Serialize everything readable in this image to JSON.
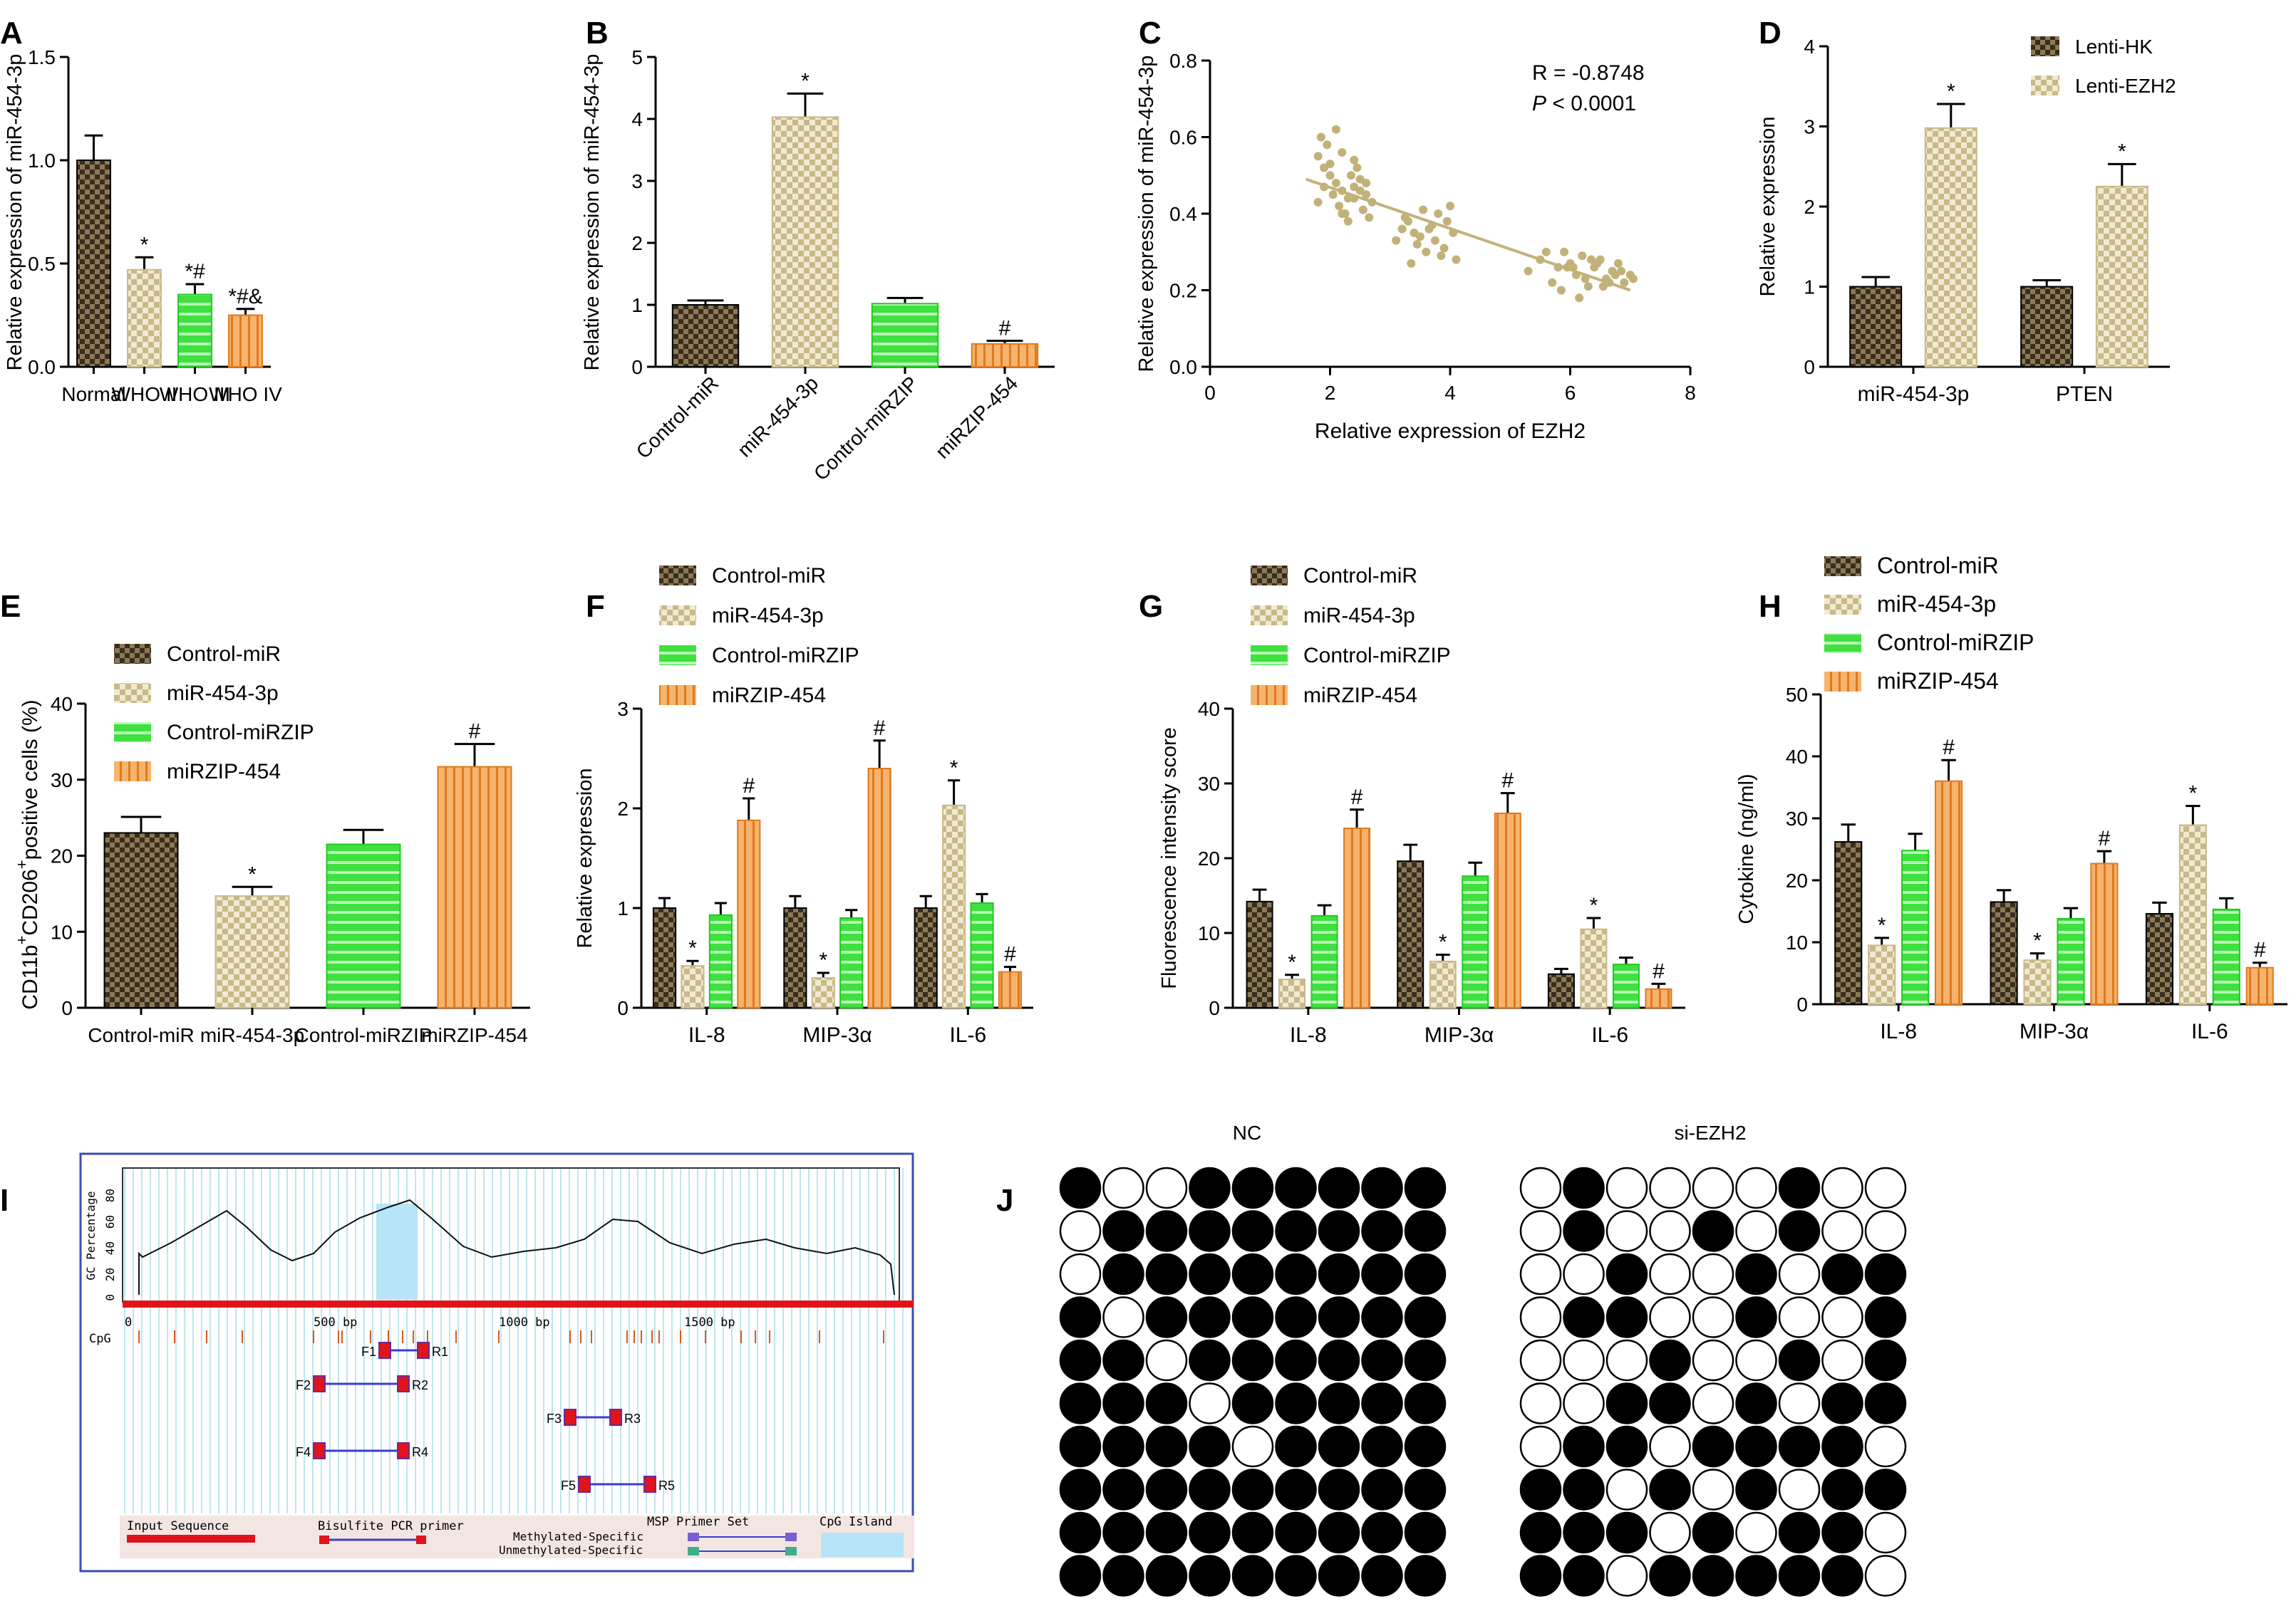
{
  "panels": {
    "A": {
      "letter": "A",
      "type": "bar",
      "ylabel": "Relative expression of miR-454-3p",
      "ylim": [
        0,
        1.5
      ],
      "yticks": [
        0.0,
        0.5,
        1.0,
        1.5
      ],
      "ytick_fmt": 1,
      "categories": [
        "Normal",
        "WHO II",
        "WHO III",
        "WHO IV"
      ],
      "values": [
        1.0,
        0.47,
        0.35,
        0.25
      ],
      "errors": [
        0.12,
        0.06,
        0.05,
        0.03
      ],
      "annotations": [
        "",
        "*",
        "*#",
        "*#&"
      ],
      "patterns": [
        "cm",
        "hm",
        "sm",
        "om"
      ]
    },
    "B": {
      "letter": "B",
      "type": "bar",
      "ylabel": "Relative expression of miR-454-3p",
      "ylim": [
        0,
        5
      ],
      "yticks": [
        0,
        1,
        2,
        3,
        4,
        5
      ],
      "ytick_fmt": 0,
      "rotated": true,
      "categories": [
        "Control-miR",
        "miR-454-3p",
        "Control-miRZIP",
        "miRZIP-454"
      ],
      "values": [
        1.0,
        4.03,
        1.02,
        0.37
      ],
      "errors": [
        0.07,
        0.38,
        0.09,
        0.05
      ],
      "annotations": [
        "",
        "*",
        "",
        "#"
      ],
      "patterns": [
        "cm",
        "hm",
        "sm",
        "om"
      ]
    },
    "C": {
      "letter": "C",
      "type": "scatter",
      "ylabel": "Relative expression of miR-454-3p",
      "xlabel": "Relative expression of EZH2",
      "xlim": [
        0,
        8
      ],
      "ylim": [
        0,
        0.8
      ],
      "xticks": [
        0,
        2,
        4,
        6,
        8
      ],
      "yticks": [
        0.0,
        0.2,
        0.4,
        0.6,
        0.8
      ],
      "stat_r": "R = -0.8748",
      "stat_p_italic": "P",
      "stat_p_rest": " < 0.0001",
      "fit": {
        "x0": 1.6,
        "y0": 0.49,
        "x1": 7.0,
        "y1": 0.2
      },
      "x": [
        1.8,
        1.9,
        2.0,
        2.1,
        2.2,
        2.3,
        2.4,
        2.5,
        2.6,
        2.7,
        1.85,
        1.95,
        2.05,
        2.15,
        2.25,
        2.35,
        2.45,
        2.55,
        2.65,
        1.9,
        2.0,
        2.2,
        2.3,
        2.4,
        2.1,
        2.5,
        2.6,
        1.8,
        2.2,
        2.4,
        3.1,
        3.2,
        3.3,
        3.4,
        3.5,
        3.6,
        3.7,
        3.8,
        3.9,
        4.0,
        4.1,
        3.25,
        3.45,
        3.65,
        3.85,
        4.05,
        3.55,
        3.75,
        3.35,
        3.95,
        5.3,
        5.5,
        5.7,
        5.8,
        5.9,
        6.0,
        6.1,
        6.2,
        6.3,
        6.4,
        6.5,
        6.6,
        6.7,
        6.8,
        6.9,
        7.0,
        5.6,
        5.85,
        6.05,
        6.25,
        6.45,
        6.65,
        6.85,
        6.15,
        6.35,
        6.55,
        6.75,
        5.95,
        7.05
      ],
      "y": [
        0.55,
        0.52,
        0.5,
        0.48,
        0.46,
        0.44,
        0.47,
        0.49,
        0.45,
        0.43,
        0.6,
        0.58,
        0.45,
        0.42,
        0.4,
        0.5,
        0.52,
        0.41,
        0.39,
        0.47,
        0.53,
        0.56,
        0.38,
        0.44,
        0.62,
        0.46,
        0.48,
        0.43,
        0.4,
        0.54,
        0.33,
        0.36,
        0.38,
        0.35,
        0.34,
        0.3,
        0.37,
        0.4,
        0.31,
        0.42,
        0.28,
        0.39,
        0.32,
        0.36,
        0.29,
        0.35,
        0.41,
        0.33,
        0.27,
        0.38,
        0.25,
        0.28,
        0.22,
        0.26,
        0.3,
        0.27,
        0.24,
        0.29,
        0.21,
        0.26,
        0.28,
        0.23,
        0.25,
        0.27,
        0.22,
        0.24,
        0.3,
        0.2,
        0.26,
        0.23,
        0.27,
        0.22,
        0.25,
        0.18,
        0.28,
        0.21,
        0.24,
        0.26,
        0.23
      ]
    },
    "D": {
      "letter": "D",
      "type": "bar",
      "ylabel": "Relative expression",
      "ylim": [
        0,
        4
      ],
      "yticks": [
        0,
        1,
        2,
        3,
        4
      ],
      "ytick_fmt": 0,
      "groups": [
        "miR-454-3p",
        "PTEN"
      ],
      "series": [
        {
          "name": "Lenti-HK",
          "pattern": "cm",
          "values": [
            1.0,
            1.0
          ],
          "errors": [
            0.12,
            0.08
          ],
          "annotations": [
            "",
            ""
          ]
        },
        {
          "name": "Lenti-EZH2",
          "pattern": "hm",
          "values": [
            2.98,
            2.25
          ],
          "errors": [
            0.3,
            0.28
          ],
          "annotations": [
            "*",
            "*"
          ]
        }
      ],
      "legend": [
        "Lenti-HK",
        "Lenti-EZH2"
      ]
    },
    "E": {
      "letter": "E",
      "type": "bar",
      "ylabel_main": "CD11b",
      "ylabel_sup1": "+",
      "ylabel_mid": "CD206",
      "ylabel_sup2": "+",
      "ylabel_tail": "positive cells (%)",
      "ylim": [
        0,
        40
      ],
      "yticks": [
        0,
        10,
        20,
        30,
        40
      ],
      "ytick_fmt": 0,
      "categories": [
        "Control-miR",
        "miR-454-3p",
        "Control-miRZIP",
        "miRZIP-454"
      ],
      "values": [
        23.0,
        14.7,
        21.5,
        31.7
      ],
      "errors": [
        2.1,
        1.2,
        1.9,
        3.0
      ],
      "annotations": [
        "",
        "*",
        "",
        "#"
      ],
      "patterns": [
        "cm",
        "hm",
        "sm",
        "om"
      ],
      "legend": [
        "Control-miR",
        "miR-454-3p",
        "Control-miRZIP",
        "miRZIP-454"
      ]
    },
    "F": {
      "letter": "F",
      "type": "bar",
      "ylabel": "Relative expression",
      "ylim": [
        0,
        3
      ],
      "yticks": [
        0,
        1,
        2,
        3
      ],
      "ytick_fmt": 0,
      "groups": [
        "IL-8",
        "MIP-3α",
        "IL-6"
      ],
      "series": [
        {
          "name": "Control-miR",
          "pattern": "cm",
          "values": [
            1.0,
            1.0,
            1.0
          ],
          "errors": [
            0.1,
            0.12,
            0.12
          ],
          "annotations": [
            "",
            "",
            ""
          ]
        },
        {
          "name": "miR-454-3p",
          "pattern": "hm",
          "values": [
            0.42,
            0.3,
            2.03
          ],
          "errors": [
            0.05,
            0.05,
            0.25
          ],
          "annotations": [
            "*",
            "*",
            "*"
          ]
        },
        {
          "name": "Control-miRZIP",
          "pattern": "sm",
          "values": [
            0.93,
            0.9,
            1.05
          ],
          "errors": [
            0.12,
            0.08,
            0.09
          ],
          "annotations": [
            "",
            "",
            ""
          ]
        },
        {
          "name": "miRZIP-454",
          "pattern": "om",
          "values": [
            1.88,
            2.4,
            0.36
          ],
          "errors": [
            0.22,
            0.28,
            0.05
          ],
          "annotations": [
            "#",
            "#",
            "#"
          ]
        }
      ],
      "legend": [
        "Control-miR",
        "miR-454-3p",
        "Control-miRZIP",
        "miRZIP-454"
      ]
    },
    "G": {
      "letter": "G",
      "type": "bar",
      "ylabel": "Fluorescence intensity score",
      "ylim": [
        0,
        40
      ],
      "yticks": [
        0,
        10,
        20,
        30,
        40
      ],
      "ytick_fmt": 0,
      "groups": [
        "IL-8",
        "MIP-3α",
        "IL-6"
      ],
      "series": [
        {
          "name": "Control-miR",
          "pattern": "cm",
          "values": [
            14.2,
            19.6,
            4.5
          ],
          "errors": [
            1.6,
            2.2,
            0.7
          ],
          "annotations": [
            "",
            "",
            ""
          ]
        },
        {
          "name": "miR-454-3p",
          "pattern": "hm",
          "values": [
            3.8,
            6.2,
            10.5
          ],
          "errors": [
            0.6,
            0.9,
            1.5
          ],
          "annotations": [
            "*",
            "*",
            "*"
          ]
        },
        {
          "name": "Control-miRZIP",
          "pattern": "sm",
          "values": [
            12.3,
            17.6,
            5.8
          ],
          "errors": [
            1.4,
            1.8,
            0.9
          ],
          "annotations": [
            "",
            "",
            ""
          ]
        },
        {
          "name": "miRZIP-454",
          "pattern": "om",
          "values": [
            24.0,
            26.0,
            2.5
          ],
          "errors": [
            2.5,
            2.7,
            0.7
          ],
          "annotations": [
            "#",
            "#",
            "#"
          ]
        }
      ],
      "legend": [
        "Control-miR",
        "miR-454-3p",
        "Control-miRZIP",
        "miRZIP-454"
      ]
    },
    "H": {
      "letter": "H",
      "type": "bar",
      "ylabel": "Cytokine (ng/ml)",
      "ylim": [
        0,
        50
      ],
      "yticks": [
        0,
        10,
        20,
        30,
        40,
        50
      ],
      "ytick_fmt": 0,
      "groups": [
        "IL-8",
        "MIP-3α",
        "IL-6"
      ],
      "series": [
        {
          "name": "Control-miR",
          "pattern": "cm",
          "values": [
            26.2,
            16.5,
            14.6
          ],
          "errors": [
            2.8,
            1.9,
            1.8
          ],
          "annotations": [
            "",
            "",
            ""
          ]
        },
        {
          "name": "miR-454-3p",
          "pattern": "hm",
          "values": [
            9.5,
            7.1,
            28.9
          ],
          "errors": [
            1.2,
            1.1,
            3.1
          ],
          "annotations": [
            "*",
            "*",
            "*"
          ]
        },
        {
          "name": "Control-miRZIP",
          "pattern": "sm",
          "values": [
            24.8,
            13.8,
            15.3
          ],
          "errors": [
            2.7,
            1.7,
            1.8
          ],
          "annotations": [
            "",
            "",
            ""
          ]
        },
        {
          "name": "miRZIP-454",
          "pattern": "om",
          "values": [
            36.0,
            22.7,
            5.9
          ],
          "errors": [
            3.4,
            2.0,
            0.8
          ],
          "annotations": [
            "#",
            "#",
            "#"
          ]
        }
      ],
      "legend": [
        "Control-miR",
        "miR-454-3p",
        "Control-miRZIP",
        "miRZIP-454"
      ]
    }
  },
  "panel_I": {
    "letter": "I",
    "ylabel": "GC Percentage",
    "yticks": [
      "0",
      "20",
      "40",
      "60",
      "80"
    ],
    "xticks": [
      "0",
      "500 bp",
      "1000 bp",
      "1500 bp"
    ],
    "cpg_label": "CpG",
    "primers": [
      {
        "f": "F1",
        "r": "R1"
      },
      {
        "f": "F2",
        "r": "R2"
      },
      {
        "f": "F3",
        "r": "R3"
      },
      {
        "f": "F4",
        "r": "R4"
      },
      {
        "f": "F5",
        "r": "R5"
      }
    ],
    "legend_input": "Input Sequence",
    "legend_bisulfite": "Bisulfite PCR primer",
    "legend_msp": "MSP Primer Set",
    "legend_meth": "Methylated-Specific",
    "legend_unmeth": "Unmethylated-Specific",
    "legend_cpg_island": "CpG Island",
    "colors": {
      "input": "#e0141a",
      "cpg_island": "#b7e4f6",
      "primer": "#e0141a",
      "primer_line": "#3b3bd8",
      "meth": "#7a5fd0",
      "unmeth": "#3fae8c",
      "frame": "#3a4db8",
      "bg_lines": "#bfe6ee"
    }
  },
  "panel_J": {
    "letter": "J",
    "titles": [
      "NC",
      "si-EZH2"
    ],
    "NC": [
      [
        1,
        0,
        0,
        1,
        1,
        1,
        1,
        1,
        1
      ],
      [
        0,
        1,
        1,
        1,
        1,
        1,
        1,
        1,
        1
      ],
      [
        0,
        1,
        1,
        1,
        1,
        1,
        1,
        1,
        1
      ],
      [
        1,
        0,
        1,
        1,
        1,
        1,
        1,
        1,
        1
      ],
      [
        1,
        1,
        0,
        1,
        1,
        1,
        1,
        1,
        1
      ],
      [
        1,
        1,
        1,
        0,
        1,
        1,
        1,
        1,
        1
      ],
      [
        1,
        1,
        1,
        1,
        0,
        1,
        1,
        1,
        1
      ],
      [
        1,
        1,
        1,
        1,
        1,
        1,
        1,
        1,
        1
      ],
      [
        1,
        1,
        1,
        1,
        1,
        1,
        1,
        1,
        1
      ],
      [
        1,
        1,
        1,
        1,
        1,
        1,
        1,
        1,
        1
      ]
    ],
    "siEZH2": [
      [
        0,
        1,
        0,
        0,
        0,
        0,
        1,
        0,
        0
      ],
      [
        0,
        1,
        0,
        0,
        1,
        0,
        1,
        0,
        0
      ],
      [
        0,
        0,
        1,
        0,
        0,
        1,
        0,
        1,
        1
      ],
      [
        0,
        1,
        1,
        0,
        0,
        1,
        0,
        0,
        1
      ],
      [
        0,
        0,
        0,
        1,
        0,
        0,
        1,
        0,
        1
      ],
      [
        0,
        0,
        1,
        1,
        0,
        1,
        0,
        1,
        1
      ],
      [
        0,
        1,
        1,
        0,
        1,
        1,
        1,
        1,
        0
      ],
      [
        1,
        1,
        0,
        1,
        0,
        1,
        0,
        1,
        1
      ],
      [
        1,
        1,
        1,
        0,
        1,
        0,
        1,
        1,
        0
      ],
      [
        1,
        1,
        0,
        1,
        1,
        1,
        1,
        1,
        0
      ]
    ]
  },
  "colors": {
    "cm_dark": "#3a2c1e",
    "cm_light": "#8a7a55",
    "hm_dark": "#c9b98a",
    "hm_light": "#f1ead2",
    "sm_base": "#40e040",
    "sm_line": "#b8f8b8",
    "om_base": "#f6b36e",
    "om_line": "#e07a1c",
    "scatter": "#c2b27a"
  }
}
